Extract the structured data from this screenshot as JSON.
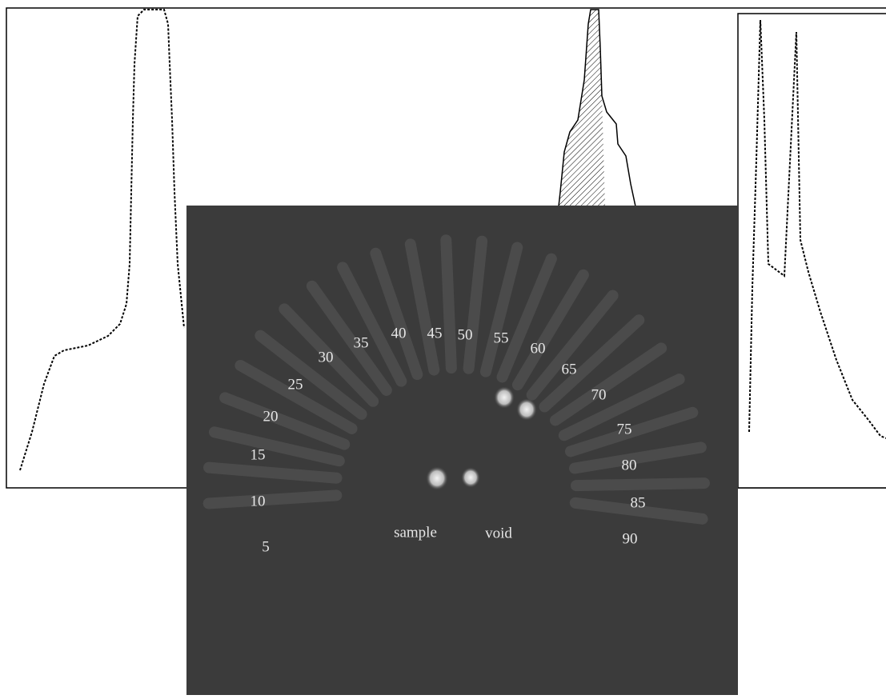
{
  "photo": {
    "lane_labels": [
      "5",
      "10",
      "15",
      "20",
      "25",
      "30",
      "35",
      "40",
      "45",
      "50",
      "55",
      "60",
      "65",
      "70",
      "75",
      "80",
      "85",
      "90"
    ],
    "sample_label": "sample",
    "void_label": "void"
  }
}
